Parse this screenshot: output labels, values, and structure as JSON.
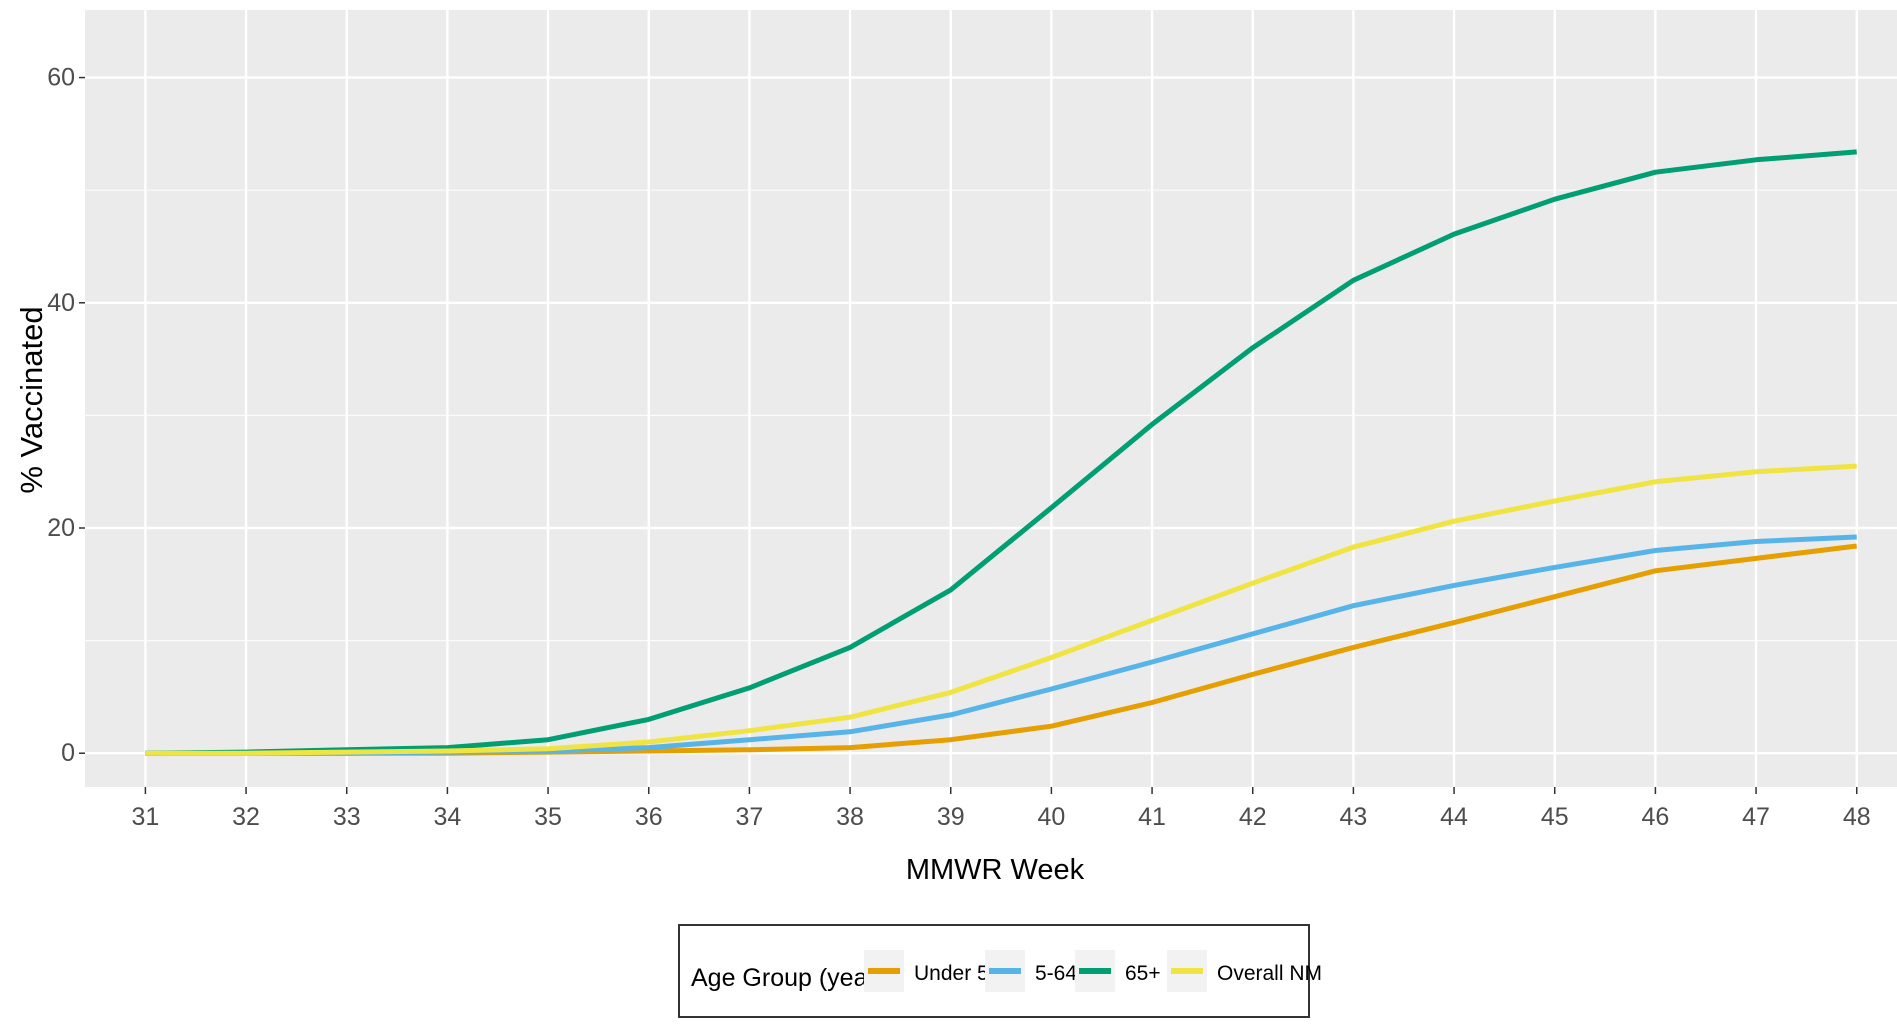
{
  "chart_data": {
    "type": "line",
    "title": "",
    "xlabel": "MMWR Week",
    "ylabel": "% Vaccinated",
    "x": [
      31,
      32,
      33,
      34,
      35,
      36,
      37,
      38,
      39,
      40,
      41,
      42,
      43,
      44,
      45,
      46,
      47,
      48
    ],
    "xlim": [
      30.4,
      48.4
    ],
    "ylim": [
      -3,
      66
    ],
    "y_ticks": [
      0,
      20,
      40,
      60
    ],
    "grid": true,
    "legend": {
      "position": "bottom",
      "title": "Age Group (years)"
    },
    "series": [
      {
        "name": "Under 5",
        "color": "#E69F00",
        "values": [
          0,
          0,
          0,
          0,
          0.1,
          0.2,
          0.3,
          0.5,
          1.2,
          2.4,
          4.5,
          7.0,
          9.4,
          11.6,
          13.9,
          16.2,
          17.3,
          18.4
        ]
      },
      {
        "name": "5-64",
        "color": "#56B4E9",
        "values": [
          0,
          0,
          0,
          0.1,
          0.2,
          0.5,
          1.2,
          1.9,
          3.4,
          5.7,
          8.1,
          10.6,
          13.1,
          14.9,
          16.5,
          18.0,
          18.8,
          19.2
        ]
      },
      {
        "name": "65+",
        "color": "#009E73",
        "values": [
          0,
          0.1,
          0.3,
          0.5,
          1.2,
          3.0,
          5.8,
          9.4,
          14.5,
          21.8,
          29.2,
          36.0,
          42.0,
          46.1,
          49.2,
          51.6,
          52.7,
          53.4
        ]
      },
      {
        "name": "Overall NM",
        "color": "#F0E442",
        "values": [
          0,
          0,
          0.1,
          0.2,
          0.4,
          1.0,
          2.0,
          3.2,
          5.4,
          8.5,
          11.8,
          15.1,
          18.3,
          20.6,
          22.4,
          24.1,
          25.0,
          25.5
        ]
      }
    ]
  },
  "style": {
    "panel_background": "#EBEBEB",
    "grid_color": "#FFFFFF",
    "tick_text_color": "#4D4D4D",
    "legend_key_background": "#F2F2F2"
  }
}
